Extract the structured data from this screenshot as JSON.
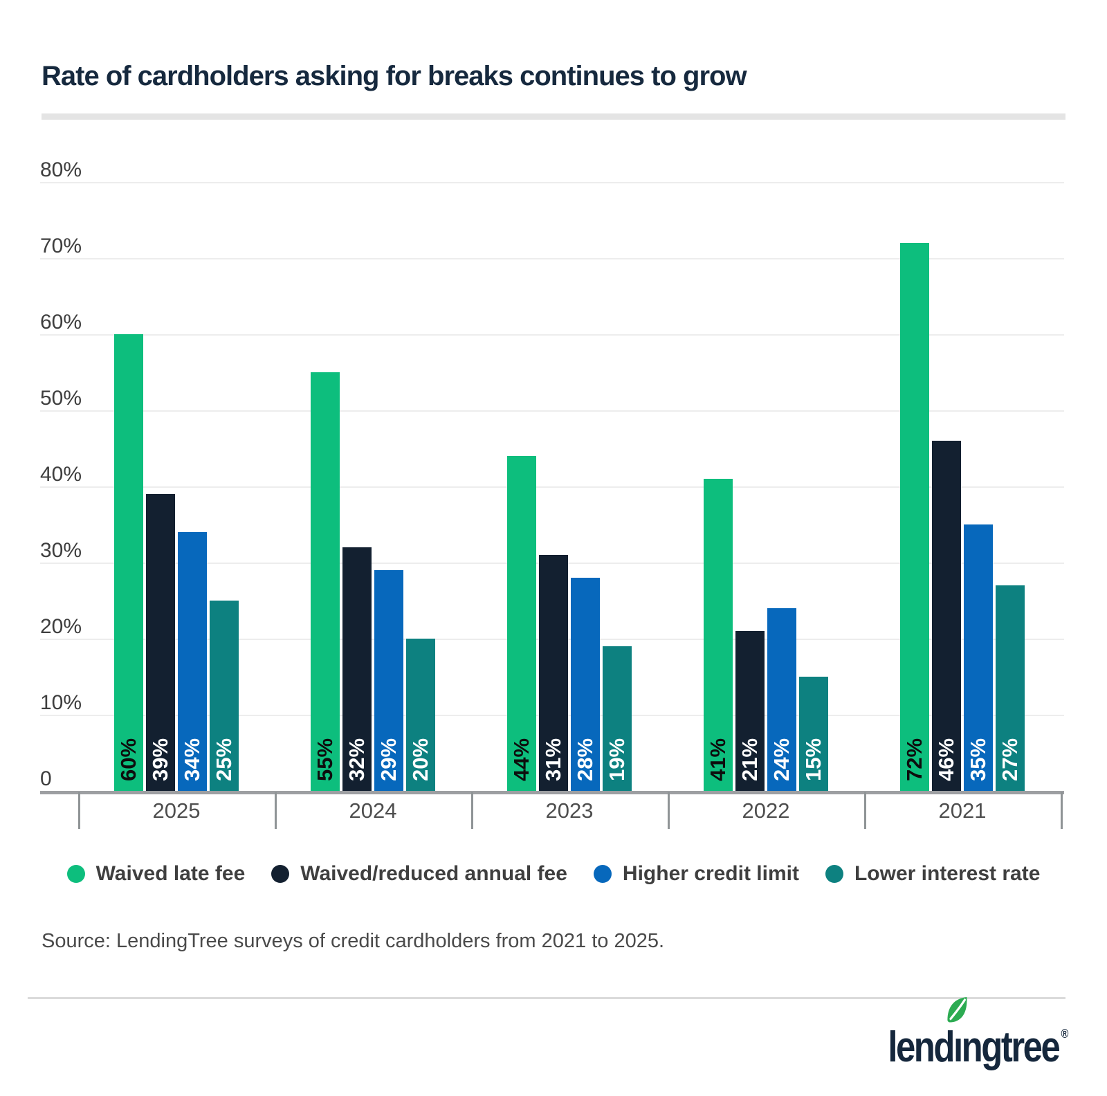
{
  "title": "Rate of cardholders asking for breaks continues to grow",
  "chart_data": {
    "type": "bar",
    "categories": [
      "2025",
      "2024",
      "2023",
      "2022",
      "2021"
    ],
    "series": [
      {
        "name": "Waived late fee",
        "color": "#0DBE7D",
        "label_color": "#0d0d0d",
        "values": [
          60,
          55,
          44,
          41,
          72
        ]
      },
      {
        "name": "Waived/reduced annual fee",
        "color": "#132030",
        "label_color": "#ffffff",
        "values": [
          39,
          32,
          31,
          21,
          46
        ]
      },
      {
        "name": "Higher credit limit",
        "color": "#0768BC",
        "label_color": "#ffffff",
        "values": [
          34,
          29,
          28,
          24,
          35
        ]
      },
      {
        "name": "Lower interest rate",
        "color": "#0D8180",
        "label_color": "#ffffff",
        "values": [
          25,
          20,
          19,
          15,
          27
        ]
      }
    ],
    "ylim": [
      0,
      80
    ],
    "ytick_step": 10,
    "ytick_labels": [
      "0",
      "10%",
      "20%",
      "30%",
      "40%",
      "50%",
      "60%",
      "70%",
      "80%"
    ],
    "grid": "horizontal",
    "legend_position": "bottom",
    "value_label_format": "{v}%"
  },
  "source_note": "Source: LendingTree surveys of credit cardholders from 2021 to 2025.",
  "logo": {
    "text_pre": "lend",
    "text_i": "ı",
    "text_post": "ngtree",
    "registered": "®",
    "leaf_color": "#2CAB52",
    "wordmark_color": "#15273c"
  }
}
